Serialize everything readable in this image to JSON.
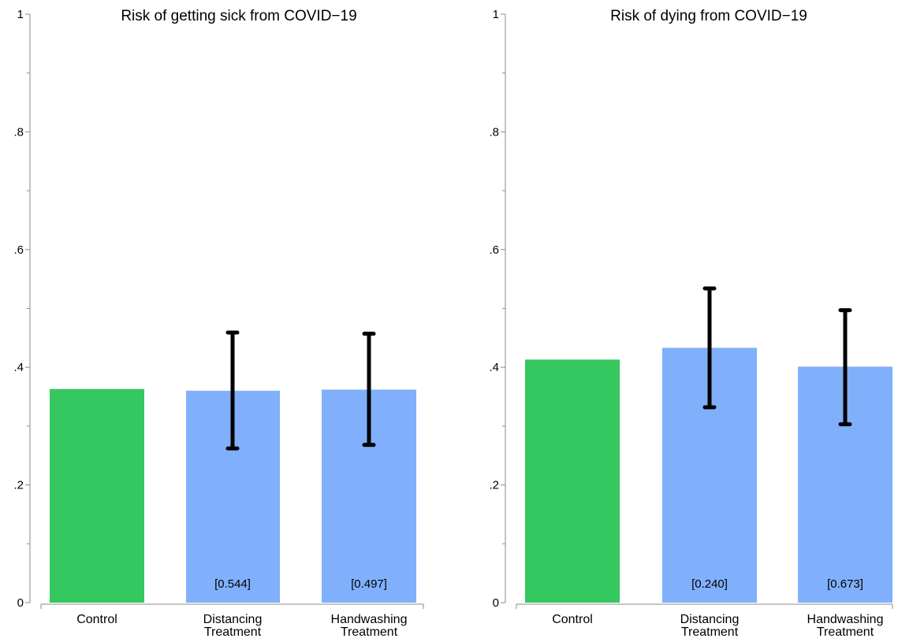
{
  "chart_data": [
    {
      "type": "bar",
      "title": "Risk of getting sick from COVID−19",
      "categories": [
        [
          "Control"
        ],
        [
          "Distancing",
          "Treatment"
        ],
        [
          "Handwashing",
          "Treatment"
        ]
      ],
      "values": [
        0.363,
        0.36,
        0.362
      ],
      "error_bars": [
        null,
        [
          0.262,
          0.459
        ],
        [
          0.268,
          0.457
        ]
      ],
      "bar_labels": [
        "",
        "[0.544]",
        "[0.497]"
      ],
      "bar_colors": [
        "#35c760",
        "#80b0fc",
        "#80b0fc"
      ],
      "ylim": [
        0,
        1
      ],
      "yticks": [
        0,
        0.2,
        0.4,
        0.6,
        0.8,
        1
      ],
      "ytick_labels": [
        "0",
        ".2",
        ".4",
        ".6",
        ".8",
        "1"
      ],
      "grid": false
    },
    {
      "type": "bar",
      "title": "Risk of dying from COVID−19",
      "categories": [
        [
          "Control"
        ],
        [
          "Distancing",
          "Treatment"
        ],
        [
          "Handwashing",
          "Treatment"
        ]
      ],
      "values": [
        0.413,
        0.433,
        0.401
      ],
      "error_bars": [
        null,
        [
          0.332,
          0.534
        ],
        [
          0.303,
          0.497
        ]
      ],
      "bar_labels": [
        "",
        "[0.240]",
        "[0.673]"
      ],
      "bar_colors": [
        "#35c760",
        "#80b0fc",
        "#80b0fc"
      ],
      "ylim": [
        0,
        1
      ],
      "yticks": [
        0,
        0.2,
        0.4,
        0.6,
        0.8,
        1
      ],
      "ytick_labels": [
        "0",
        ".2",
        ".4",
        ".6",
        ".8",
        "1"
      ],
      "grid": false
    }
  ]
}
